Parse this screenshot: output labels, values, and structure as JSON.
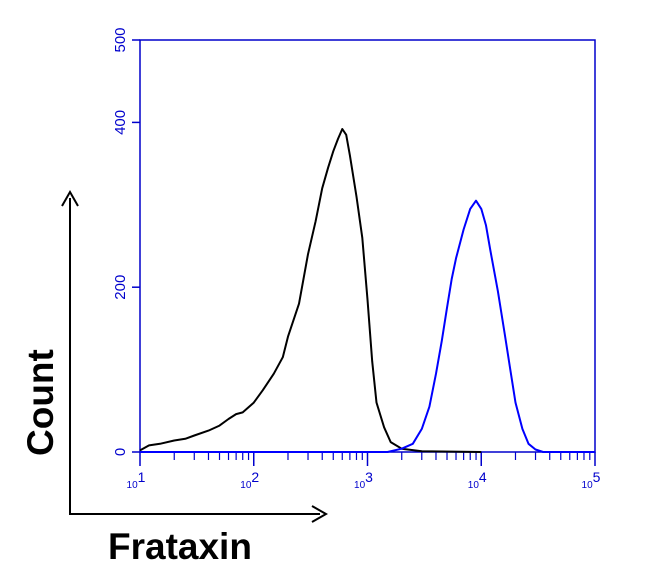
{
  "chart_data": {
    "type": "line",
    "title": "",
    "xlabel": "Frataxin",
    "ylabel": "Count",
    "x_scale": "log",
    "xlim": [
      10,
      100000
    ],
    "ylim": [
      0,
      500
    ],
    "y_ticks": [
      "0",
      "200",
      "400",
      "500"
    ],
    "x_ticks": [
      {
        "base": "10",
        "exp": "1"
      },
      {
        "base": "10",
        "exp": "2"
      },
      {
        "base": "10",
        "exp": "3"
      },
      {
        "base": "10",
        "exp": "4"
      },
      {
        "base": "10",
        "exp": "5"
      }
    ],
    "grid": false,
    "axis_color": "#0000cc",
    "series": [
      {
        "color": "#000000",
        "points": [
          [
            10,
            2
          ],
          [
            12,
            8
          ],
          [
            15,
            10
          ],
          [
            20,
            14
          ],
          [
            25,
            16
          ],
          [
            30,
            20
          ],
          [
            40,
            26
          ],
          [
            50,
            32
          ],
          [
            60,
            40
          ],
          [
            70,
            46
          ],
          [
            80,
            48
          ],
          [
            100,
            60
          ],
          [
            120,
            75
          ],
          [
            150,
            95
          ],
          [
            180,
            115
          ],
          [
            200,
            140
          ],
          [
            250,
            180
          ],
          [
            300,
            240
          ],
          [
            350,
            280
          ],
          [
            400,
            320
          ],
          [
            450,
            345
          ],
          [
            500,
            365
          ],
          [
            550,
            380
          ],
          [
            600,
            392
          ],
          [
            650,
            385
          ],
          [
            700,
            360
          ],
          [
            800,
            310
          ],
          [
            900,
            260
          ],
          [
            1000,
            185
          ],
          [
            1100,
            110
          ],
          [
            1200,
            60
          ],
          [
            1400,
            30
          ],
          [
            1600,
            12
          ],
          [
            2000,
            4
          ],
          [
            3000,
            1
          ],
          [
            10000,
            0
          ]
        ]
      },
      {
        "color": "#0000ff",
        "points": [
          [
            10,
            0
          ],
          [
            1500,
            0
          ],
          [
            2000,
            4
          ],
          [
            2500,
            10
          ],
          [
            3000,
            28
          ],
          [
            3500,
            55
          ],
          [
            4000,
            95
          ],
          [
            4500,
            135
          ],
          [
            5000,
            175
          ],
          [
            5500,
            210
          ],
          [
            6000,
            235
          ],
          [
            7000,
            270
          ],
          [
            8000,
            295
          ],
          [
            9000,
            305
          ],
          [
            10000,
            295
          ],
          [
            11000,
            275
          ],
          [
            12000,
            245
          ],
          [
            14000,
            195
          ],
          [
            16000,
            145
          ],
          [
            18000,
            100
          ],
          [
            20000,
            60
          ],
          [
            23000,
            28
          ],
          [
            26000,
            10
          ],
          [
            30000,
            3
          ],
          [
            35000,
            0
          ],
          [
            100000,
            0
          ]
        ]
      }
    ]
  }
}
